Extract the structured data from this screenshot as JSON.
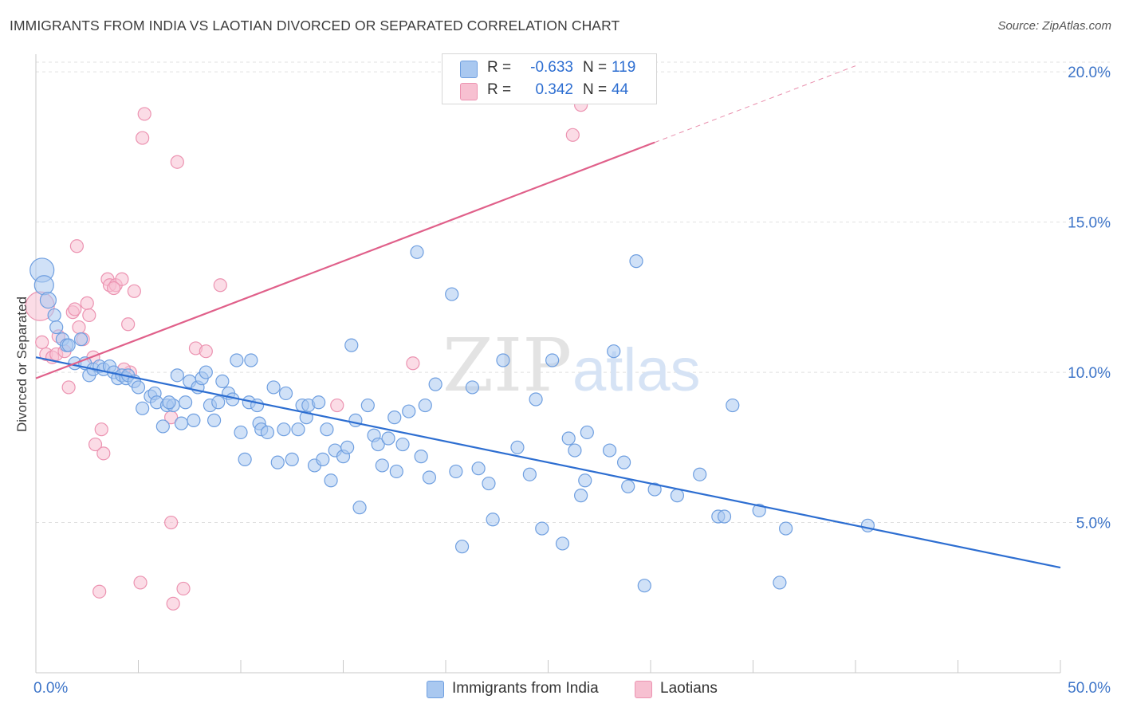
{
  "title": "IMMIGRANTS FROM INDIA VS LAOTIAN DIVORCED OR SEPARATED CORRELATION CHART",
  "source": "Source: ZipAtlas.com",
  "watermark": {
    "zip": "ZIP",
    "atlas": "atlas"
  },
  "legend": {
    "rows": [
      {
        "r_label": "R =",
        "r_value": "-0.633",
        "n_label": "N =",
        "n_value": "119",
        "color": "#9fc1ee"
      },
      {
        "r_label": "R =",
        "r_value": "0.342",
        "n_label": "N =",
        "n_value": "44",
        "color": "#f6b2c7"
      }
    ]
  },
  "colors": {
    "india_fill": "#a9c8f0",
    "india_stroke": "#6f9fe0",
    "india_line": "#2d6ed1",
    "laos_fill": "#f7c0d1",
    "laos_stroke": "#ec93b1",
    "laos_line": "#e0608a",
    "tick_text": "#3f76c9",
    "grid": "#e0e0e0"
  },
  "chart_data": {
    "type": "scatter",
    "title": "IMMIGRANTS FROM INDIA VS LAOTIAN DIVORCED OR SEPARATED CORRELATION CHART",
    "xlabel": "",
    "ylabel": "Divorced or Separated",
    "xlim": [
      0,
      50
    ],
    "ylim": [
      0,
      20.8
    ],
    "x_tick_labels": [
      "0.0%",
      "50.0%"
    ],
    "y_ticks": [
      5,
      10,
      15,
      20
    ],
    "y_tick_labels": [
      "5.0%",
      "10.0%",
      "15.0%",
      "20.0%"
    ],
    "grid": true,
    "legend_placement": "top-center",
    "series": [
      {
        "name": "Immigrants from India",
        "r": -0.633,
        "n": 119,
        "trend": {
          "x0": 0,
          "y0": 10.5,
          "x1": 50,
          "y1": 3.5,
          "solid_to": 50
        },
        "points": [
          [
            0.3,
            13.4
          ],
          [
            0.4,
            12.9
          ],
          [
            0.6,
            12.4
          ],
          [
            0.9,
            11.9
          ],
          [
            1.0,
            11.5
          ],
          [
            1.3,
            11.1
          ],
          [
            1.5,
            10.9
          ],
          [
            1.6,
            10.9
          ],
          [
            1.9,
            10.3
          ],
          [
            2.2,
            11.1
          ],
          [
            2.4,
            10.3
          ],
          [
            2.6,
            9.9
          ],
          [
            2.8,
            10.1
          ],
          [
            3.1,
            10.2
          ],
          [
            3.3,
            10.1
          ],
          [
            3.6,
            10.2
          ],
          [
            3.8,
            10.0
          ],
          [
            4.0,
            9.8
          ],
          [
            4.2,
            9.9
          ],
          [
            4.4,
            9.8
          ],
          [
            4.5,
            9.9
          ],
          [
            4.8,
            9.7
          ],
          [
            5.0,
            9.5
          ],
          [
            5.2,
            8.8
          ],
          [
            5.6,
            9.2
          ],
          [
            5.8,
            9.3
          ],
          [
            5.9,
            9.0
          ],
          [
            6.2,
            8.2
          ],
          [
            6.4,
            8.9
          ],
          [
            6.7,
            8.9
          ],
          [
            6.5,
            9.0
          ],
          [
            6.9,
            9.9
          ],
          [
            7.1,
            8.3
          ],
          [
            7.3,
            9.0
          ],
          [
            7.5,
            9.7
          ],
          [
            7.7,
            8.4
          ],
          [
            7.9,
            9.5
          ],
          [
            8.1,
            9.8
          ],
          [
            8.3,
            10.0
          ],
          [
            8.5,
            8.9
          ],
          [
            8.7,
            8.4
          ],
          [
            8.9,
            9.0
          ],
          [
            9.1,
            9.7
          ],
          [
            9.4,
            9.3
          ],
          [
            9.6,
            9.1
          ],
          [
            9.8,
            10.4
          ],
          [
            10.0,
            8.0
          ],
          [
            10.2,
            7.1
          ],
          [
            10.4,
            9.0
          ],
          [
            10.5,
            10.4
          ],
          [
            10.8,
            8.9
          ],
          [
            10.9,
            8.3
          ],
          [
            11.0,
            8.1
          ],
          [
            11.3,
            8.0
          ],
          [
            11.6,
            9.5
          ],
          [
            11.8,
            7.0
          ],
          [
            12.1,
            8.1
          ],
          [
            12.2,
            9.3
          ],
          [
            12.5,
            7.1
          ],
          [
            12.8,
            8.1
          ],
          [
            13.0,
            8.9
          ],
          [
            13.2,
            8.5
          ],
          [
            13.3,
            8.9
          ],
          [
            13.6,
            6.9
          ],
          [
            13.8,
            9.0
          ],
          [
            14.0,
            7.1
          ],
          [
            14.2,
            8.1
          ],
          [
            14.4,
            6.4
          ],
          [
            14.6,
            7.4
          ],
          [
            15.0,
            7.2
          ],
          [
            15.2,
            7.5
          ],
          [
            15.4,
            10.9
          ],
          [
            15.6,
            8.4
          ],
          [
            15.8,
            5.5
          ],
          [
            16.2,
            8.9
          ],
          [
            16.5,
            7.9
          ],
          [
            16.7,
            7.6
          ],
          [
            16.9,
            6.9
          ],
          [
            17.2,
            7.8
          ],
          [
            17.5,
            8.5
          ],
          [
            17.6,
            6.7
          ],
          [
            17.9,
            7.6
          ],
          [
            18.2,
            8.7
          ],
          [
            18.6,
            14.0
          ],
          [
            18.8,
            7.2
          ],
          [
            19.0,
            8.9
          ],
          [
            19.2,
            6.5
          ],
          [
            19.5,
            9.6
          ],
          [
            20.3,
            12.6
          ],
          [
            20.5,
            6.7
          ],
          [
            20.8,
            4.2
          ],
          [
            21.3,
            9.5
          ],
          [
            21.6,
            6.8
          ],
          [
            22.1,
            6.3
          ],
          [
            22.3,
            5.1
          ],
          [
            22.8,
            10.4
          ],
          [
            23.5,
            7.5
          ],
          [
            24.1,
            6.6
          ],
          [
            24.4,
            9.1
          ],
          [
            24.7,
            4.8
          ],
          [
            25.2,
            10.4
          ],
          [
            25.7,
            4.3
          ],
          [
            26.0,
            7.8
          ],
          [
            26.3,
            7.4
          ],
          [
            26.6,
            5.9
          ],
          [
            26.8,
            6.4
          ],
          [
            26.9,
            8.0
          ],
          [
            28.0,
            7.4
          ],
          [
            28.2,
            10.7
          ],
          [
            28.7,
            7.0
          ],
          [
            28.9,
            6.2
          ],
          [
            29.3,
            13.7
          ],
          [
            29.7,
            2.9
          ],
          [
            30.2,
            6.1
          ],
          [
            31.3,
            5.9
          ],
          [
            32.4,
            6.6
          ],
          [
            33.3,
            5.2
          ],
          [
            33.6,
            5.2
          ],
          [
            34.0,
            8.9
          ],
          [
            35.3,
            5.4
          ],
          [
            36.3,
            3.0
          ],
          [
            36.6,
            4.8
          ],
          [
            40.6,
            4.9
          ]
        ]
      },
      {
        "name": "Laotians",
        "r": 0.342,
        "n": 44,
        "trend": {
          "x0": 0,
          "y0": 9.8,
          "x1": 40,
          "y1": 20.2,
          "solid_to": 30.2
        },
        "points": [
          [
            0.2,
            12.2
          ],
          [
            0.3,
            11.0
          ],
          [
            0.5,
            10.6
          ],
          [
            0.8,
            10.5
          ],
          [
            1.0,
            10.6
          ],
          [
            1.1,
            11.2
          ],
          [
            1.4,
            10.7
          ],
          [
            1.6,
            9.5
          ],
          [
            1.8,
            12.0
          ],
          [
            1.9,
            12.1
          ],
          [
            2.0,
            14.2
          ],
          [
            2.1,
            11.5
          ],
          [
            2.3,
            11.1
          ],
          [
            2.5,
            12.3
          ],
          [
            2.6,
            11.9
          ],
          [
            2.8,
            10.5
          ],
          [
            2.9,
            7.6
          ],
          [
            3.1,
            2.7
          ],
          [
            3.2,
            8.1
          ],
          [
            3.3,
            7.3
          ],
          [
            3.5,
            13.1
          ],
          [
            3.6,
            12.9
          ],
          [
            3.9,
            12.9
          ],
          [
            4.2,
            13.1
          ],
          [
            4.5,
            11.6
          ],
          [
            4.6,
            10.0
          ],
          [
            4.8,
            12.7
          ],
          [
            5.1,
            3.0
          ],
          [
            5.2,
            17.8
          ],
          [
            5.3,
            18.6
          ],
          [
            6.6,
            8.5
          ],
          [
            6.6,
            5.0
          ],
          [
            6.7,
            2.3
          ],
          [
            6.9,
            17.0
          ],
          [
            7.2,
            2.8
          ],
          [
            7.8,
            10.8
          ],
          [
            8.3,
            10.7
          ],
          [
            9.0,
            12.9
          ],
          [
            14.7,
            8.9
          ],
          [
            18.4,
            10.3
          ],
          [
            26.2,
            17.9
          ],
          [
            26.6,
            18.9
          ],
          [
            3.8,
            12.8
          ],
          [
            4.3,
            10.1
          ]
        ]
      }
    ]
  }
}
